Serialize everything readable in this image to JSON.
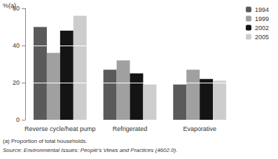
{
  "chart_data": {
    "type": "bar",
    "ylabel": "%(a)",
    "categories": [
      "Reverse cycle/heat pump",
      "Refrigerated",
      "Evaporative"
    ],
    "series": [
      {
        "name": "1994",
        "color": "#5a5a5a",
        "values": [
          50,
          27,
          19
        ]
      },
      {
        "name": "1999",
        "color": "#a0a0a0",
        "values": [
          36,
          32,
          27
        ]
      },
      {
        "name": "2002",
        "color": "#141414",
        "values": [
          48,
          25,
          22
        ]
      },
      {
        "name": "2005",
        "color": "#cdcdcd",
        "values": [
          56,
          19,
          21
        ]
      }
    ],
    "ylim": [
      0,
      60
    ],
    "yticks": [
      0,
      20,
      40,
      60
    ],
    "grid": true,
    "legend": "top-right",
    "annotations": [
      "(a) Proportion of total households.",
      "Source: Environmental Issues: People's Views and Practices (4602.0)."
    ]
  }
}
